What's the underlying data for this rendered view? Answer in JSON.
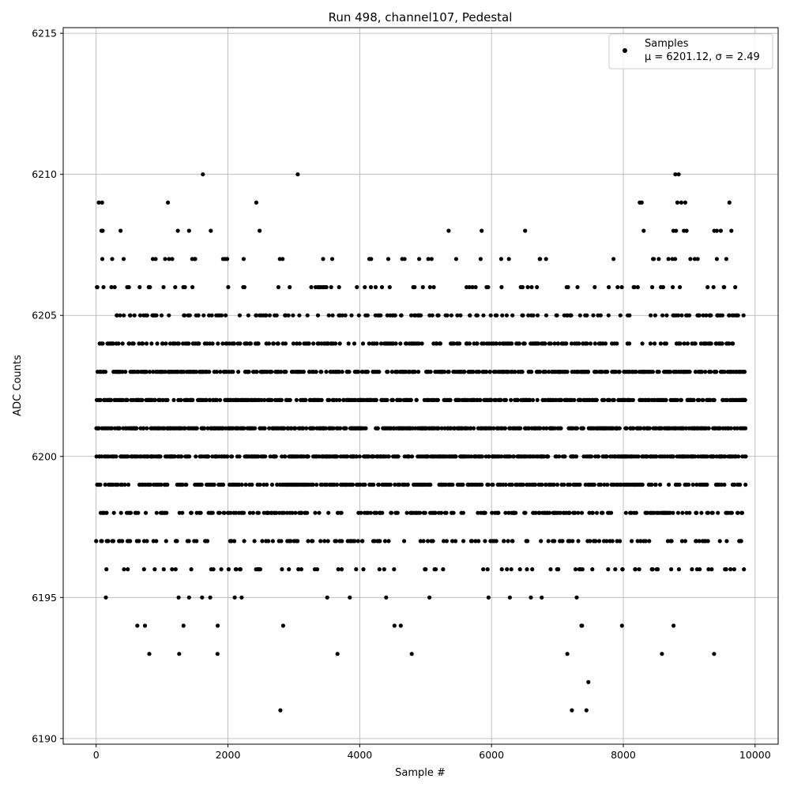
{
  "chart_data": {
    "type": "scatter",
    "title": "Run 498, channel107, Pedestal",
    "xlabel": "Sample #",
    "ylabel": "ADC Counts",
    "xlim": [
      -500,
      10350
    ],
    "ylim": [
      6189.8,
      6215.2
    ],
    "xticks": [
      0,
      2000,
      4000,
      6000,
      8000,
      10000
    ],
    "xtick_labels": [
      "0",
      "2000",
      "4000",
      "6000",
      "8000",
      "10000"
    ],
    "yticks": [
      6190,
      6195,
      6200,
      6205,
      6210,
      6215
    ],
    "ytick_labels": [
      "6190",
      "6195",
      "6200",
      "6205",
      "6210",
      "6215"
    ],
    "grid": true,
    "legend": {
      "placement": "upper-right",
      "label": "Samples",
      "stats_text": "μ = 6201.12, σ = 2.49"
    },
    "marker_color": "#000000",
    "n_samples": 9860,
    "series": [
      {
        "name": "Samples",
        "mean": 6201.12,
        "std": 2.49,
        "levels": [
          6190,
          6191,
          6192,
          6193,
          6194,
          6195,
          6196,
          6197,
          6198,
          6199,
          6200,
          6201,
          6202,
          6203,
          6204,
          6205,
          6206,
          6207,
          6208,
          6209,
          6210
        ],
        "sparse_points": [
          [
            1620,
            6210
          ],
          [
            3060,
            6210
          ],
          [
            8790,
            6210
          ],
          [
            8840,
            6210
          ],
          [
            40,
            6209
          ],
          [
            90,
            6209
          ],
          [
            1090,
            6209
          ],
          [
            2430,
            6209
          ],
          [
            8250,
            6209
          ],
          [
            8280,
            6209
          ],
          [
            8820,
            6209
          ],
          [
            8880,
            6209
          ],
          [
            8940,
            6209
          ],
          [
            9610,
            6209
          ],
          [
            80,
            6208
          ],
          [
            100,
            6208
          ],
          [
            370,
            6208
          ],
          [
            1240,
            6208
          ],
          [
            1410,
            6208
          ],
          [
            1740,
            6208
          ],
          [
            2480,
            6208
          ],
          [
            5350,
            6208
          ],
          [
            5850,
            6208
          ],
          [
            6510,
            6208
          ],
          [
            8310,
            6208
          ],
          [
            8760,
            6208
          ],
          [
            8800,
            6208
          ],
          [
            8920,
            6208
          ],
          [
            8960,
            6208
          ],
          [
            9380,
            6208
          ],
          [
            9420,
            6208
          ],
          [
            9480,
            6208
          ],
          [
            9640,
            6208
          ],
          [
            1260,
            6193
          ],
          [
            4790,
            6193
          ],
          [
            7150,
            6193
          ],
          [
            7470,
            6192
          ],
          [
            7220,
            6191
          ],
          [
            7440,
            6191
          ]
        ]
      }
    ]
  }
}
